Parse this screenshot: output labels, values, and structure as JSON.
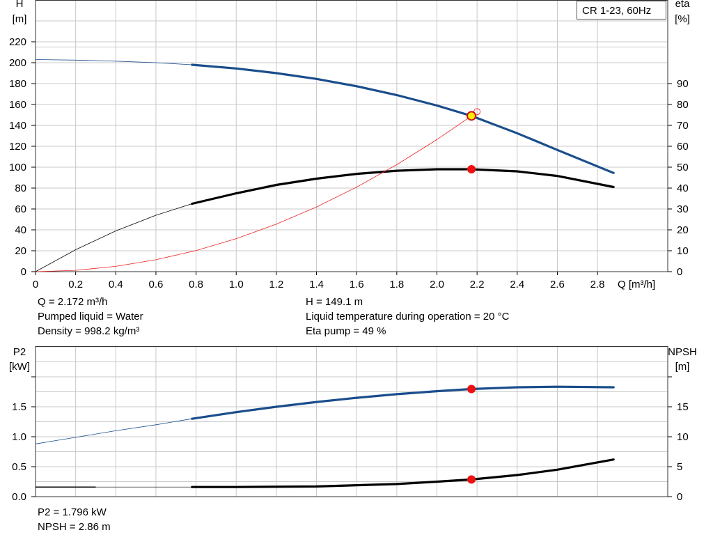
{
  "chart_data": [
    {
      "type": "line",
      "title": "CR 1-23, 60Hz",
      "xlabel": "Q [m³/h]",
      "xlim": [
        0,
        3.15
      ],
      "xticks": [
        0,
        0.2,
        0.4,
        0.6,
        0.8,
        1.0,
        1.2,
        1.4,
        1.6,
        1.8,
        2.0,
        2.2,
        2.4,
        2.6,
        2.8
      ],
      "xtick_labels": [
        "0",
        "0.2",
        "0.4",
        "0.6",
        "0.8",
        "1.0",
        "1.2",
        "1.4",
        "1.6",
        "1.8",
        "2.0",
        "2.2",
        "2.4",
        "2.6",
        "2.8"
      ],
      "ylabel_left": [
        "H",
        "[m]"
      ],
      "ylim_left": [
        0,
        220
      ],
      "yticks_left": [
        0,
        20,
        40,
        60,
        80,
        100,
        120,
        140,
        160,
        180,
        200,
        220
      ],
      "ylabel_right": [
        "eta",
        "[%]"
      ],
      "ylim_right": [
        0,
        110
      ],
      "yticks_right": [
        0,
        10,
        20,
        30,
        40,
        50,
        60,
        70,
        80,
        90
      ],
      "grid": true,
      "series": [
        {
          "key": "H",
          "axis": "left",
          "color": "#1a4d8c",
          "x": [
            0,
            0.2,
            0.4,
            0.6,
            0.78,
            1.0,
            1.2,
            1.4,
            1.6,
            1.8,
            2.0,
            2.172,
            2.4,
            2.6,
            2.88
          ],
          "y": [
            203,
            202.5,
            201.5,
            200,
            198,
            194.5,
            190,
            184.5,
            177.5,
            169,
            159,
            149.1,
            132.5,
            116.5,
            94.5
          ],
          "thick_from": 0.78
        },
        {
          "key": "eta",
          "axis": "right",
          "color": "#000000",
          "x": [
            0,
            0.2,
            0.4,
            0.6,
            0.78,
            1.0,
            1.2,
            1.4,
            1.6,
            1.8,
            2.0,
            2.172,
            2.4,
            2.6,
            2.88
          ],
          "y": [
            0,
            10.5,
            19.5,
            27,
            32.5,
            37.5,
            41.5,
            44.5,
            46.8,
            48.3,
            49,
            49,
            48,
            45.8,
            40.5
          ],
          "thick_from": 0.78
        },
        {
          "key": "system-curve",
          "axis": "left",
          "color": "#ee2222",
          "x": [
            0,
            0.2,
            0.4,
            0.6,
            0.8,
            1.0,
            1.2,
            1.4,
            1.6,
            1.8,
            2.0,
            2.172
          ],
          "y": [
            0,
            1.3,
            5.1,
            11.4,
            20.2,
            31.6,
            45.5,
            61.9,
            80.9,
            102.4,
            126.4,
            149.1
          ],
          "thick_from": null
        }
      ],
      "operating_points": [
        {
          "key": "duty-point-H",
          "x": 2.172,
          "y": 149.1,
          "axis": "left",
          "fill": "#ffee00",
          "stroke": "#cc1111"
        },
        {
          "key": "duty-point-eta",
          "x": 2.172,
          "y": 49,
          "axis": "right",
          "fill": "#ee1111",
          "stroke": "#ee1111"
        }
      ],
      "info_left": [
        "Q = 2.172 m³/h",
        "Pumped liquid = Water",
        "Density = 998.2 kg/m³"
      ],
      "info_right": [
        "H = 149.1 m",
        "Liquid temperature during operation = 20 °C",
        "Eta pump = 49 %"
      ]
    },
    {
      "type": "line",
      "xlim": [
        0,
        3.15
      ],
      "ylabel_left": [
        "P2",
        "[kW]"
      ],
      "ylim_left": [
        0,
        2.0
      ],
      "yticks_left": [
        0,
        0.5,
        1.0,
        1.5
      ],
      "ytick_labels_left": [
        "0.0",
        "0.5",
        "1.0",
        "1.5"
      ],
      "ylabel_right": [
        "NPSH",
        "[m]"
      ],
      "ylim_right": [
        0,
        20
      ],
      "yticks_right": [
        0,
        5,
        10,
        15
      ],
      "grid": true,
      "series": [
        {
          "key": "P2",
          "axis": "left",
          "color": "#1a4d8c",
          "x": [
            0,
            0.2,
            0.4,
            0.6,
            0.78,
            1.0,
            1.2,
            1.4,
            1.6,
            1.8,
            2.0,
            2.172,
            2.4,
            2.6,
            2.88
          ],
          "y": [
            0.88,
            0.99,
            1.1,
            1.2,
            1.3,
            1.41,
            1.5,
            1.58,
            1.65,
            1.71,
            1.76,
            1.796,
            1.825,
            1.835,
            1.825
          ],
          "thick_from": 0.78
        },
        {
          "key": "NPSH",
          "axis": "right",
          "color": "#000000",
          "x": [
            0,
            0.3,
            0.78,
            1.0,
            1.4,
            1.8,
            2.0,
            2.172,
            2.4,
            2.6,
            2.88
          ],
          "y": [
            1.6,
            1.6,
            1.6,
            1.6,
            1.7,
            2.1,
            2.5,
            2.86,
            3.6,
            4.5,
            6.2
          ],
          "thick_from": 0.78,
          "flat_thin": true
        }
      ],
      "operating_points": [
        {
          "key": "duty-point-P2",
          "x": 2.172,
          "y": 1.796,
          "axis": "left",
          "fill": "#ee1111",
          "stroke": "#ee1111"
        },
        {
          "key": "duty-point-NPSH",
          "x": 2.172,
          "y": 2.86,
          "axis": "right",
          "fill": "#ee1111",
          "stroke": "#ee1111"
        }
      ],
      "info_left": [
        "P2 = 1.796 kW",
        "NPSH = 2.86 m"
      ]
    }
  ]
}
